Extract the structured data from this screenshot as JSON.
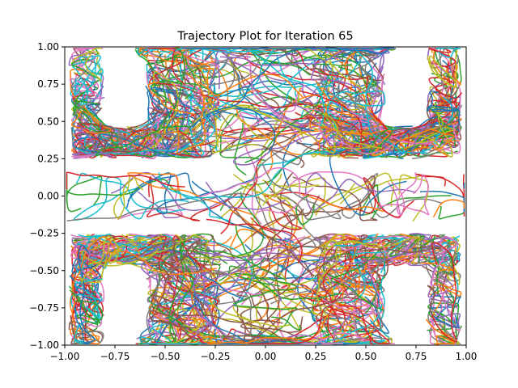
{
  "chart_data": {
    "type": "line",
    "title": "Trajectory Plot for Iteration 65",
    "xlabel": "",
    "ylabel": "",
    "xlim": [
      -1.0,
      1.0
    ],
    "ylim": [
      -1.0,
      1.0
    ],
    "grid": false,
    "legend": "none",
    "x_ticks": [
      -1.0,
      -0.75,
      -0.5,
      -0.25,
      0.0,
      0.25,
      0.5,
      0.75,
      1.0
    ],
    "x_tick_labels": [
      "−1.00",
      "−0.75",
      "−0.50",
      "−0.25",
      "0.00",
      "0.25",
      "0.50",
      "0.75",
      "1.00"
    ],
    "y_ticks": [
      1.0,
      0.75,
      0.5,
      0.25,
      0.0,
      -0.25,
      -0.5,
      -0.75,
      -1.0
    ],
    "y_tick_labels": [
      "1.00",
      "0.75",
      "0.50",
      "0.25",
      "0.00",
      "−0.25",
      "−0.50",
      "−0.75",
      "−1.00"
    ],
    "series_colors": [
      "#1f77b4",
      "#ff7f0e",
      "#2ca02c",
      "#d62728",
      "#9467bd",
      "#8c564b",
      "#e377c2",
      "#7f7f7f",
      "#bcbd22",
      "#17becf"
    ],
    "trajectory_count": 900,
    "free_regions": [
      {
        "x": [
          -1.0,
          1.0
        ],
        "y": [
          -0.17,
          0.17
        ]
      },
      {
        "x": [
          -0.2,
          0.2
        ],
        "y": [
          -1.0,
          1.0
        ]
      },
      {
        "x": [
          -0.98,
          -0.8
        ],
        "y": [
          0.25,
          1.0
        ]
      },
      {
        "x": [
          -0.98,
          -0.8
        ],
        "y": [
          -1.0,
          -0.25
        ]
      },
      {
        "x": [
          0.8,
          0.98
        ],
        "y": [
          0.25,
          1.0
        ]
      },
      {
        "x": [
          0.8,
          0.98
        ],
        "y": [
          -1.0,
          -0.25
        ]
      },
      {
        "x": [
          -0.8,
          -0.38
        ],
        "y": [
          0.25,
          0.47
        ]
      },
      {
        "x": [
          -0.8,
          -0.38
        ],
        "y": [
          -0.47,
          -0.25
        ]
      },
      {
        "x": [
          0.38,
          0.8
        ],
        "y": [
          0.25,
          0.47
        ]
      },
      {
        "x": [
          0.38,
          0.8
        ],
        "y": [
          -0.47,
          -0.25
        ]
      },
      {
        "x": [
          -0.6,
          -0.38
        ],
        "y": [
          0.25,
          1.0
        ]
      },
      {
        "x": [
          -0.6,
          -0.38
        ],
        "y": [
          -1.0,
          -0.25
        ]
      },
      {
        "x": [
          0.38,
          0.6
        ],
        "y": [
          0.25,
          1.0
        ]
      },
      {
        "x": [
          0.38,
          0.6
        ],
        "y": [
          -1.0,
          -0.25
        ]
      },
      {
        "x": [
          -0.38,
          -0.22
        ],
        "y": [
          0.25,
          1.0
        ]
      },
      {
        "x": [
          -0.38,
          -0.22
        ],
        "y": [
          -1.0,
          -0.25
        ]
      },
      {
        "x": [
          0.22,
          0.38
        ],
        "y": [
          0.25,
          1.0
        ]
      },
      {
        "x": [
          0.22,
          0.38
        ],
        "y": [
          -1.0,
          -0.25
        ]
      },
      {
        "x": [
          -0.65,
          0.65
        ],
        "y": [
          -1.0,
          -0.93
        ]
      },
      {
        "x": [
          -0.65,
          0.65
        ],
        "y": [
          0.93,
          1.0
        ]
      }
    ]
  }
}
